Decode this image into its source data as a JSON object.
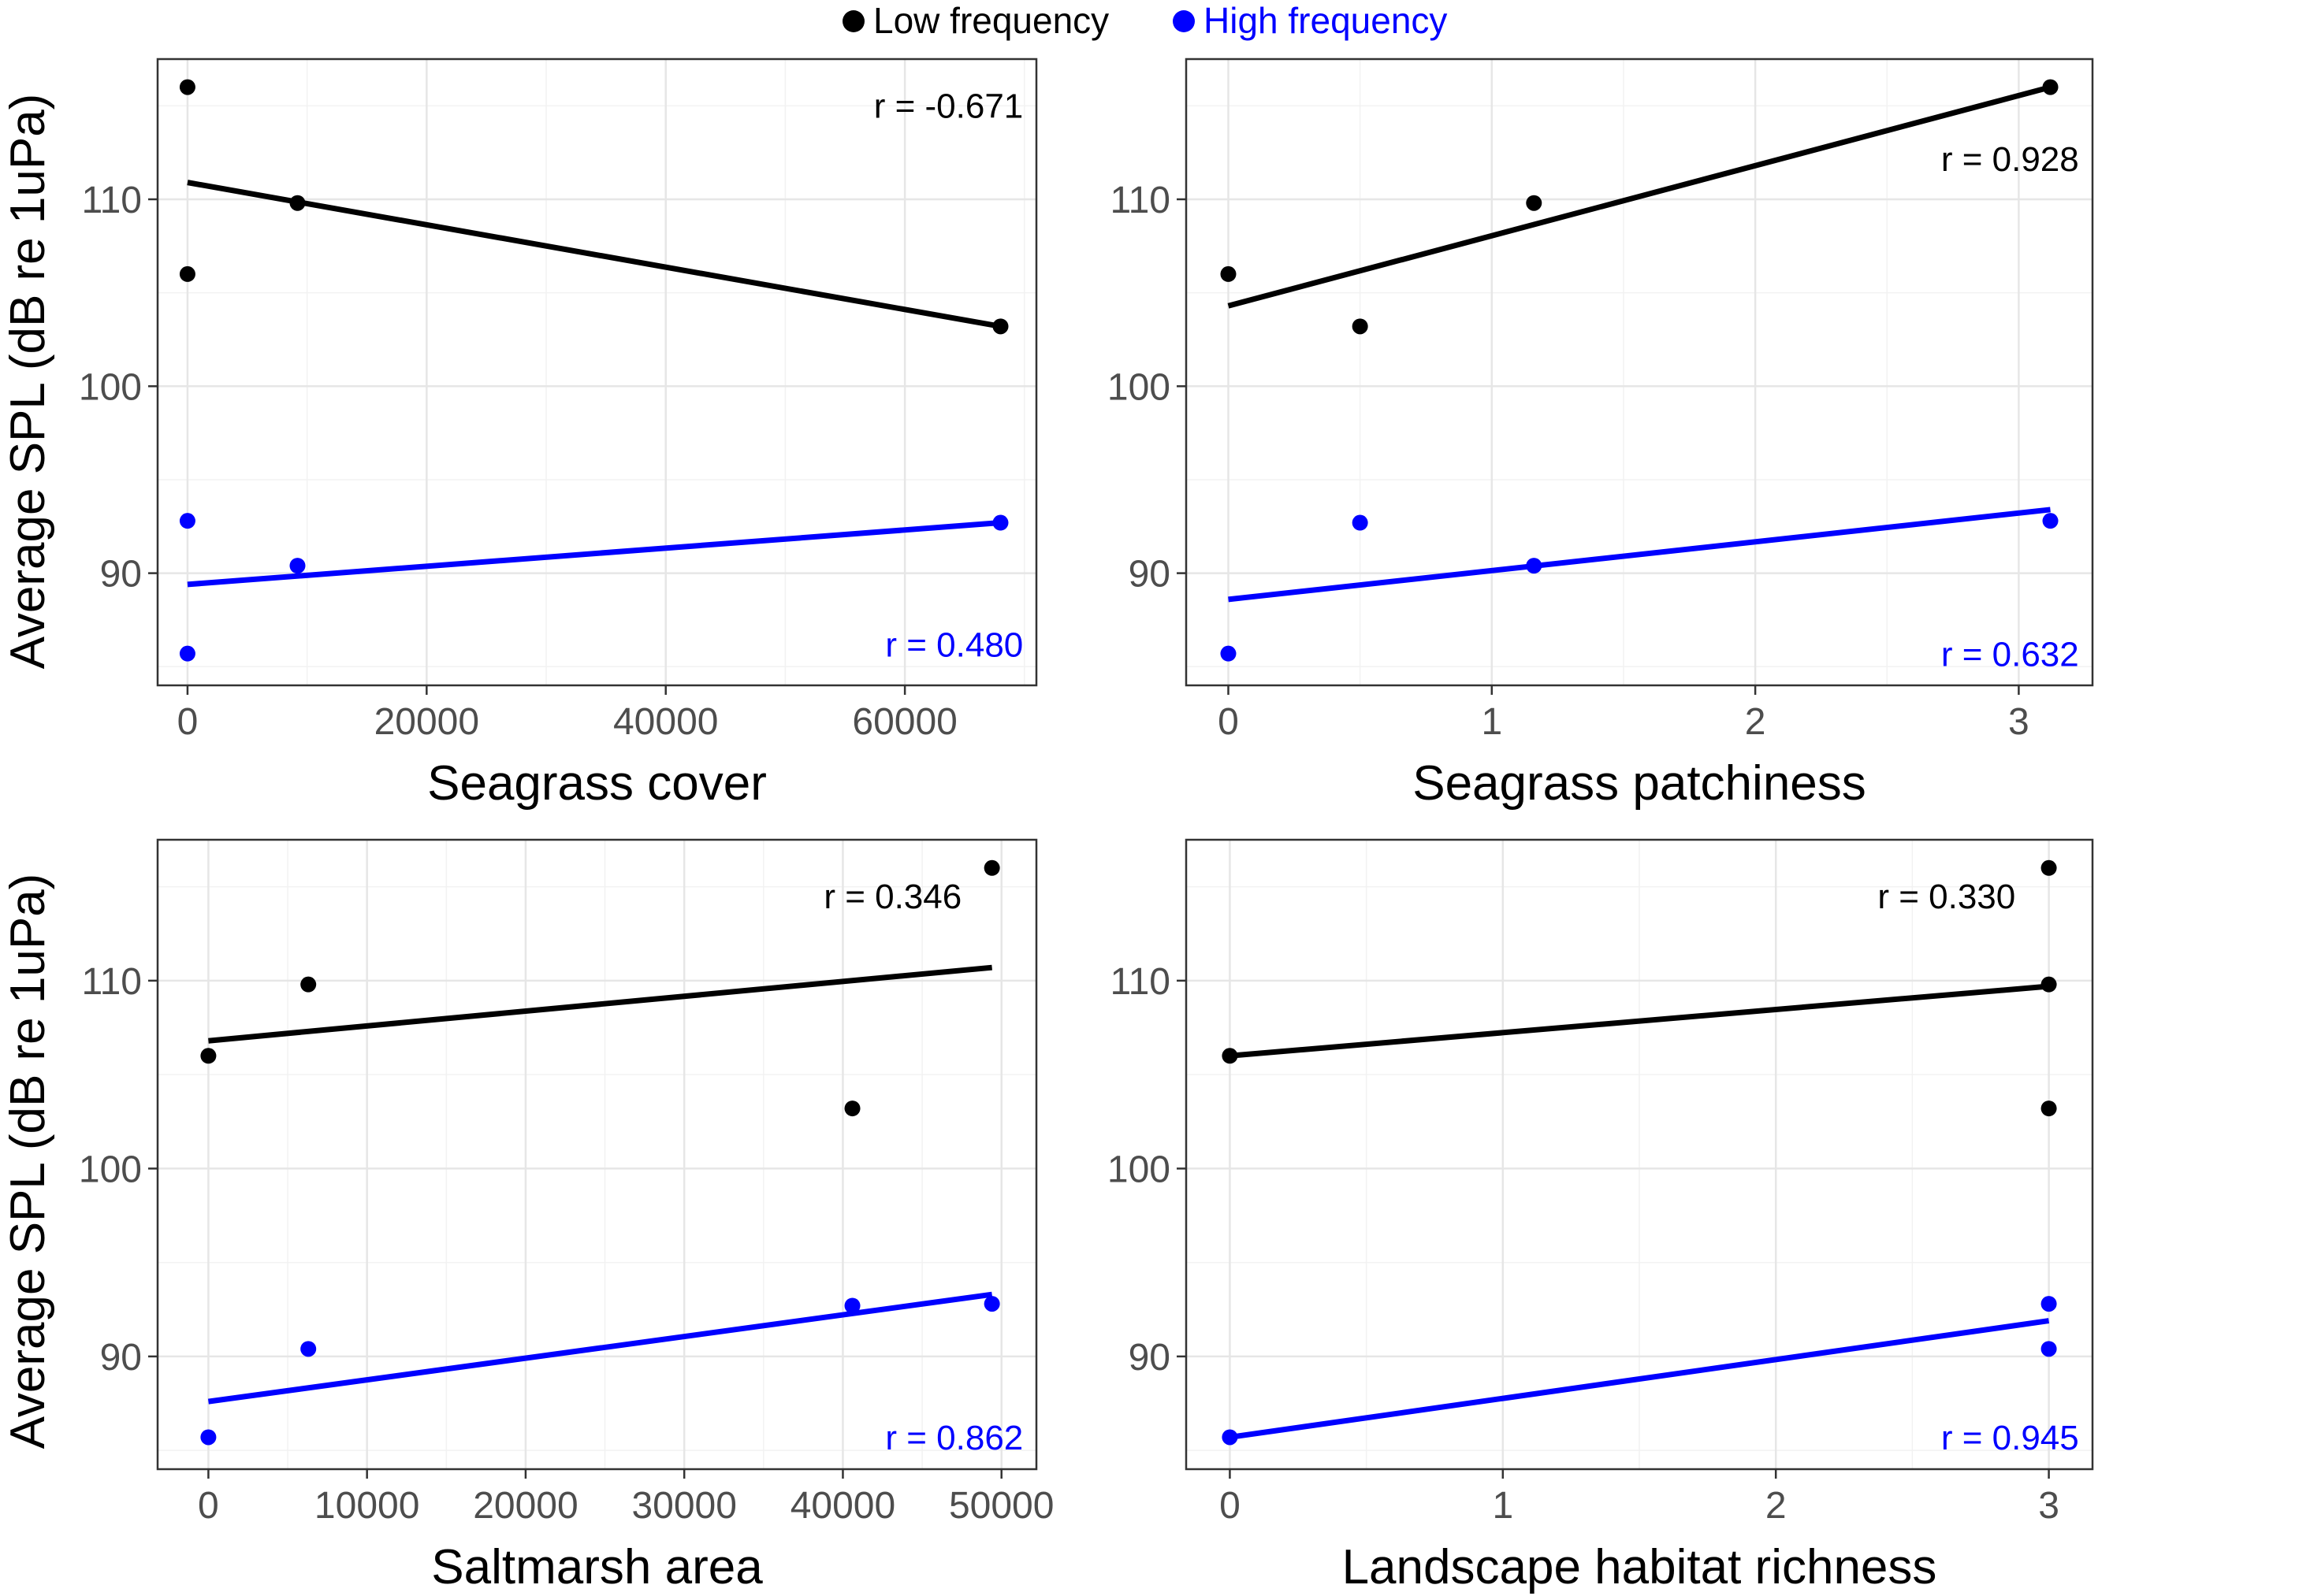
{
  "legend": {
    "items": [
      {
        "label": "Low frequency",
        "color": "#000000"
      },
      {
        "label": "High frequency",
        "color": "#0000ff"
      }
    ]
  },
  "y_axis_title": "Average SPL (dB re 1uPa)",
  "chart_data": [
    {
      "type": "scatter",
      "xlabel": "Seagrass cover",
      "ylabel": "Average SPL (dB re 1uPa)",
      "xlim": [
        -2500,
        71000
      ],
      "ylim": [
        84,
        117.5
      ],
      "x_ticks": [
        0,
        20000,
        40000,
        60000
      ],
      "x_tick_labels": [
        "0",
        "20000",
        "40000",
        "60000"
      ],
      "y_ticks": [
        90,
        100,
        110
      ],
      "series": [
        {
          "name": "Low frequency",
          "color": "#000000",
          "r_label": "r = -0.671",
          "points": [
            [
              0,
              116.0
            ],
            [
              0,
              106.0
            ],
            [
              9200,
              109.8
            ],
            [
              68000,
              103.2
            ]
          ],
          "fit": [
            [
              0,
              110.9
            ],
            [
              68000,
              103.2
            ]
          ]
        },
        {
          "name": "High frequency",
          "color": "#0000ff",
          "r_label": "r = 0.480",
          "points": [
            [
              0,
              92.8
            ],
            [
              0,
              85.7
            ],
            [
              9200,
              90.4
            ],
            [
              68000,
              92.7
            ]
          ],
          "fit": [
            [
              0,
              89.4
            ],
            [
              68000,
              92.7
            ]
          ]
        }
      ]
    },
    {
      "type": "scatter",
      "xlabel": "Seagrass patchiness",
      "ylabel": "Average SPL (dB re 1uPa)",
      "xlim": [
        -0.16,
        3.28
      ],
      "ylim": [
        84,
        117.5
      ],
      "x_ticks": [
        0,
        1,
        2,
        3
      ],
      "x_tick_labels": [
        "0",
        "1",
        "2",
        "3"
      ],
      "y_ticks": [
        90,
        100,
        110
      ],
      "series": [
        {
          "name": "Low frequency",
          "color": "#000000",
          "r_label": "r = 0.928",
          "points": [
            [
              0,
              106.0
            ],
            [
              0.5,
              103.2
            ],
            [
              1.16,
              109.8
            ],
            [
              3.12,
              116.0
            ]
          ],
          "fit": [
            [
              0,
              104.3
            ],
            [
              3.12,
              116.0
            ]
          ]
        },
        {
          "name": "High frequency",
          "color": "#0000ff",
          "r_label": "r = 0.632",
          "points": [
            [
              0,
              85.7
            ],
            [
              0.5,
              92.7
            ],
            [
              1.16,
              90.4
            ],
            [
              3.12,
              92.8
            ]
          ],
          "fit": [
            [
              0,
              88.6
            ],
            [
              3.12,
              93.4
            ]
          ]
        }
      ]
    },
    {
      "type": "scatter",
      "xlabel": "Saltmarsh area",
      "ylabel": "Average SPL (dB re 1uPa)",
      "xlim": [
        -3200,
        52200
      ],
      "ylim": [
        84,
        117.5
      ],
      "x_ticks": [
        0,
        10000,
        20000,
        30000,
        40000,
        50000
      ],
      "x_tick_labels": [
        "0",
        "10000",
        "20000",
        "30000",
        "40000",
        "50000"
      ],
      "y_ticks": [
        90,
        100,
        110
      ],
      "series": [
        {
          "name": "Low frequency",
          "color": "#000000",
          "r_label": "r = 0.346",
          "points": [
            [
              0,
              106.0
            ],
            [
              6300,
              109.8
            ],
            [
              40600,
              103.2
            ],
            [
              49400,
              116.0
            ]
          ],
          "fit": [
            [
              0,
              106.8
            ],
            [
              49400,
              110.7
            ]
          ]
        },
        {
          "name": "High frequency",
          "color": "#0000ff",
          "r_label": "r = 0.862",
          "points": [
            [
              0,
              85.7
            ],
            [
              6300,
              90.4
            ],
            [
              40600,
              92.7
            ],
            [
              49400,
              92.8
            ]
          ],
          "fit": [
            [
              0,
              87.6
            ],
            [
              49400,
              93.3
            ]
          ]
        }
      ]
    },
    {
      "type": "scatter",
      "xlabel": "Landscape habitat richness",
      "ylabel": "Average SPL (dB re 1uPa)",
      "xlim": [
        -0.16,
        3.16
      ],
      "ylim": [
        84,
        117.5
      ],
      "x_ticks": [
        0,
        1,
        2,
        3
      ],
      "x_tick_labels": [
        "0",
        "1",
        "2",
        "3"
      ],
      "y_ticks": [
        90,
        100,
        110
      ],
      "series": [
        {
          "name": "Low frequency",
          "color": "#000000",
          "r_label": "r = 0.330",
          "points": [
            [
              0,
              106.0
            ],
            [
              3,
              116.0
            ],
            [
              3,
              109.8
            ],
            [
              3,
              103.2
            ]
          ],
          "fit": [
            [
              0,
              106.0
            ],
            [
              3,
              109.7
            ]
          ]
        },
        {
          "name": "High frequency",
          "color": "#0000ff",
          "r_label": "r = 0.945",
          "points": [
            [
              0,
              85.7
            ],
            [
              3,
              92.8
            ],
            [
              3,
              90.4
            ]
          ],
          "fit": [
            [
              0,
              85.7
            ],
            [
              3,
              91.9
            ]
          ]
        }
      ]
    }
  ]
}
